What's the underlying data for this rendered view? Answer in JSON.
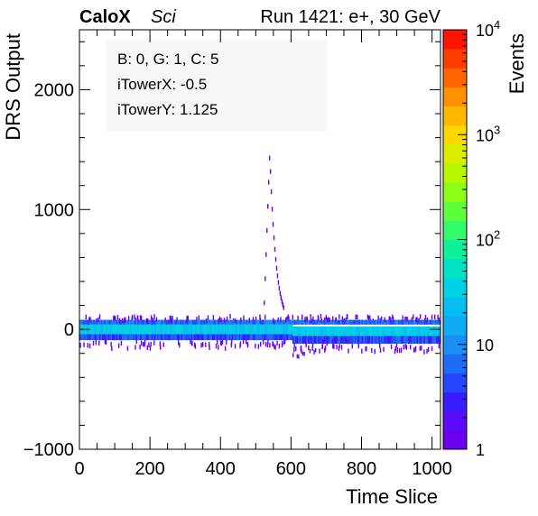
{
  "header": {
    "brand": "CaloX",
    "brand_sub": "Sci",
    "run_label": "Run 1421: e+, 30 GeV"
  },
  "info_box": {
    "line1": "B: 0, G: 1, C: 5",
    "line2": "iTowerX: -0.5",
    "line3": "iTowerY: 1.125"
  },
  "chart_data": {
    "type": "heatmap",
    "title": "",
    "xlabel": "Time Slice",
    "ylabel": "DRS Output",
    "xlim": [
      0,
      1024
    ],
    "ylim": [
      -1000,
      2500
    ],
    "x_ticks": [
      0,
      200,
      400,
      600,
      800,
      1000
    ],
    "x_tick_labels": [
      "0",
      "200",
      "400",
      "600",
      "800",
      "1000"
    ],
    "y_ticks": [
      -1000,
      0,
      1000,
      2000
    ],
    "y_tick_labels": [
      "−1000",
      "0",
      "1000",
      "2000"
    ],
    "colorbar": {
      "label": "Events",
      "scale": "log",
      "range": [
        1,
        10000
      ],
      "tick_values": [
        1,
        10,
        100,
        1000,
        10000
      ],
      "tick_labels": [
        {
          "base": "1",
          "exp": ""
        },
        {
          "base": "10",
          "exp": ""
        },
        {
          "base": "10",
          "exp": "2"
        },
        {
          "base": "10",
          "exp": "3"
        },
        {
          "base": "10",
          "exp": "4"
        }
      ],
      "colors": [
        "#6a00ee",
        "#5a0cf8",
        "#3a1cfe",
        "#2446fc",
        "#1e6cf4",
        "#1a8ef2",
        "#12aaf2",
        "#06bef2",
        "#00d2e6",
        "#00e4c4",
        "#10f09a",
        "#32fa6a",
        "#5efe3a",
        "#8cfe16",
        "#b6f800",
        "#dcec00",
        "#f8d800",
        "#ffb800",
        "#ff9000",
        "#ff6600",
        "#ff3c00",
        "#ff1400"
      ]
    },
    "baseline": {
      "x_range": [
        0,
        1024
      ],
      "core_y": [
        -40,
        40
      ],
      "band_y": [
        -90,
        80
      ],
      "noise_y": [
        -150,
        120
      ],
      "shift_after_signal": -30
    },
    "signal_pulse": {
      "start": 520,
      "rise_end": 538,
      "fall_end": 600,
      "peak": 1450,
      "undershoot": -250,
      "undershoot_range": [
        600,
        760
      ]
    }
  }
}
